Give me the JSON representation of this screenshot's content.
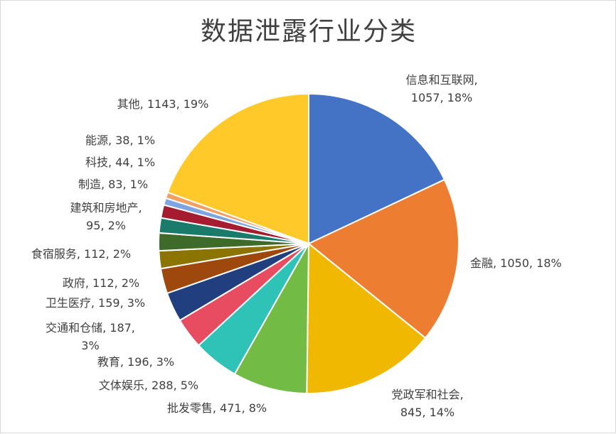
{
  "chart_data": {
    "type": "pie",
    "title": "数据泄露行业分类",
    "start_angle_deg": 0,
    "direction": "clockwise",
    "slices": [
      {
        "label": "信息和互联网",
        "value": 1057,
        "percent": "18%",
        "color": "#4472C4"
      },
      {
        "label": "金融",
        "value": 1050,
        "percent": "18%",
        "color": "#ED7D31"
      },
      {
        "label": "党政军和社会",
        "value": 845,
        "percent": "14%",
        "color": "#F0B800"
      },
      {
        "label": "批发零售",
        "value": 471,
        "percent": "8%",
        "color": "#72BB45"
      },
      {
        "label": "文体娱乐",
        "value": 288,
        "percent": "5%",
        "color": "#2EC3B6"
      },
      {
        "label": "教育",
        "value": 196,
        "percent": "3%",
        "color": "#E84C61"
      },
      {
        "label": "交通和仓储",
        "value": 187,
        "percent": "3%",
        "color": "#213F7F"
      },
      {
        "label": "卫生医疗",
        "value": 159,
        "percent": "3%",
        "color": "#9E480E"
      },
      {
        "label": "政府",
        "value": 112,
        "percent": "2%",
        "color": "#8B7400"
      },
      {
        "label": "食宿服务",
        "value": 112,
        "percent": "2%",
        "color": "#3F6B2A"
      },
      {
        "label": "建筑和房地产",
        "value": 95,
        "percent": "2%",
        "color": "#1B7B6B"
      },
      {
        "label": "制造",
        "value": 83,
        "percent": "1%",
        "color": "#A51C30"
      },
      {
        "label": "科技",
        "value": 44,
        "percent": "1%",
        "color": "#7EA4E2"
      },
      {
        "label": "能源",
        "value": 38,
        "percent": "1%",
        "color": "#F2A062"
      },
      {
        "label": "其他",
        "value": 1143,
        "percent": "19%",
        "color": "#FFC929"
      }
    ]
  }
}
